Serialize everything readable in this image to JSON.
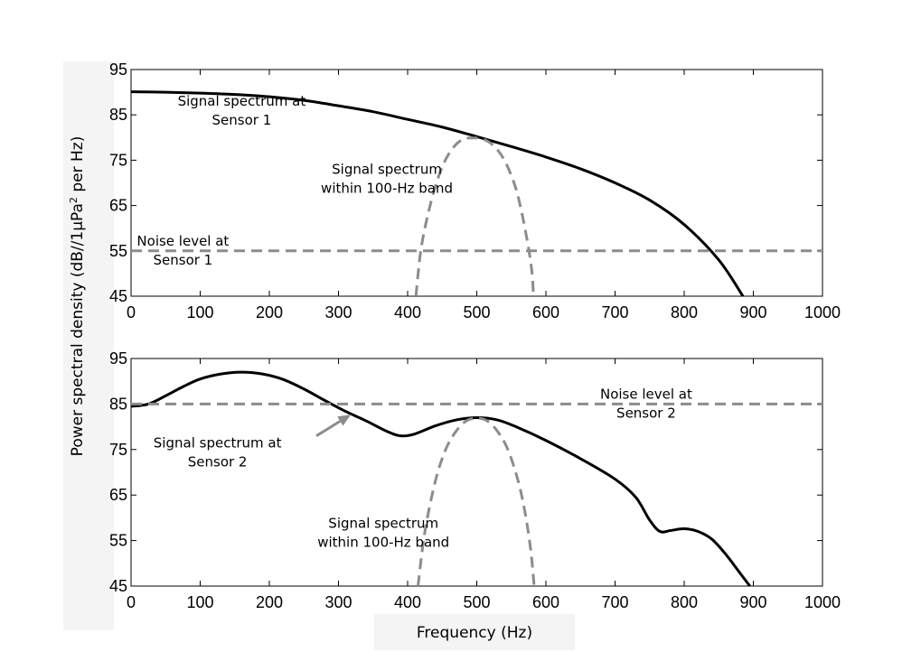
{
  "chart_data": {
    "shared_ylabel_parts": [
      "Power spectral density (dB//1μPa",
      "2",
      " per Hz)"
    ],
    "xlabel": "Frequency (Hz)",
    "panels": [
      {
        "type": "line",
        "xlim": [
          0,
          1000
        ],
        "ylim": [
          45,
          95
        ],
        "xticks": [
          0,
          100,
          200,
          300,
          400,
          500,
          600,
          700,
          800,
          900,
          1000
        ],
        "yticks": [
          45,
          55,
          65,
          75,
          85,
          95
        ],
        "series": [
          {
            "style": "solid",
            "color": "#000000",
            "points": [
              [
                0,
                90.1
              ],
              [
                50,
                90.0
              ],
              [
                100,
                89.8
              ],
              [
                150,
                89.5
              ],
              [
                200,
                89.0
              ],
              [
                250,
                88.2
              ],
              [
                300,
                87.0
              ],
              [
                350,
                85.7
              ],
              [
                400,
                84.0
              ],
              [
                450,
                82.3
              ],
              [
                500,
                80.2
              ],
              [
                550,
                78.0
              ],
              [
                600,
                75.7
              ],
              [
                650,
                73.1
              ],
              [
                700,
                70.0
              ],
              [
                750,
                66.2
              ],
              [
                800,
                60.8
              ],
              [
                850,
                53.0
              ],
              [
                885,
                45.0
              ]
            ]
          },
          {
            "style": "dashed",
            "color": "#8c8c8c",
            "points": [
              [
                412,
                45.0
              ],
              [
                420,
                56.0
              ],
              [
                435,
                66.5
              ],
              [
                450,
                73.5
              ],
              [
                465,
                77.6
              ],
              [
                480,
                79.6
              ],
              [
                495,
                79.9
              ],
              [
                510,
                79.6
              ],
              [
                525,
                78.1
              ],
              [
                540,
                75.0
              ],
              [
                555,
                69.5
              ],
              [
                565,
                63.5
              ],
              [
                575,
                55.5
              ],
              [
                580,
                50.0
              ],
              [
                582,
                45.0
              ]
            ]
          },
          {
            "style": "dashed",
            "color": "#8c8c8c",
            "points": [
              [
                0,
                55
              ],
              [
                1000,
                55
              ]
            ]
          }
        ],
        "annotations": [
          {
            "lines": [
              "Signal spectrum at",
              "Sensor 1"
            ],
            "x": 160,
            "y": 87.0
          },
          {
            "lines": [
              "Signal spectrum",
              "within 100-Hz band"
            ],
            "x": 370,
            "y": 72.0
          },
          {
            "lines": [
              "Noise level at",
              "Sensor 1"
            ],
            "x": 75,
            "y": 56.2
          }
        ]
      },
      {
        "type": "line",
        "xlim": [
          0,
          1000
        ],
        "ylim": [
          45,
          95
        ],
        "xticks": [
          0,
          100,
          200,
          300,
          400,
          500,
          600,
          700,
          800,
          900,
          1000
        ],
        "yticks": [
          45,
          55,
          65,
          75,
          85,
          95
        ],
        "series": [
          {
            "style": "solid",
            "color": "#000000",
            "points": [
              [
                0,
                84.5
              ],
              [
                25,
                85.0
              ],
              [
                50,
                86.8
              ],
              [
                75,
                88.8
              ],
              [
                100,
                90.5
              ],
              [
                130,
                91.6
              ],
              [
                160,
                92.0
              ],
              [
                190,
                91.6
              ],
              [
                220,
                90.4
              ],
              [
                250,
                88.3
              ],
              [
                280,
                85.8
              ],
              [
                310,
                83.4
              ],
              [
                340,
                81.3
              ],
              [
                370,
                79.0
              ],
              [
                390,
                78.0
              ],
              [
                410,
                78.4
              ],
              [
                440,
                80.2
              ],
              [
                470,
                81.5
              ],
              [
                500,
                82.0
              ],
              [
                530,
                81.5
              ],
              [
                560,
                79.8
              ],
              [
                600,
                77.0
              ],
              [
                650,
                73.0
              ],
              [
                700,
                68.5
              ],
              [
                730,
                64.5
              ],
              [
                750,
                59.5
              ],
              [
                765,
                57.0
              ],
              [
                780,
                57.2
              ],
              [
                800,
                57.6
              ],
              [
                820,
                57.0
              ],
              [
                840,
                55.3
              ],
              [
                860,
                52.0
              ],
              [
                880,
                48.0
              ],
              [
                895,
                45.0
              ]
            ]
          },
          {
            "style": "dashed",
            "color": "#8c8c8c",
            "points": [
              [
                415,
                45.0
              ],
              [
                425,
                57.0
              ],
              [
                440,
                68.0
              ],
              [
                455,
                75.0
              ],
              [
                470,
                79.0
              ],
              [
                485,
                81.3
              ],
              [
                500,
                81.9
              ],
              [
                515,
                81.3
              ],
              [
                530,
                79.0
              ],
              [
                545,
                75.0
              ],
              [
                560,
                68.0
              ],
              [
                570,
                61.0
              ],
              [
                578,
                53.0
              ],
              [
                583,
                45.0
              ]
            ]
          },
          {
            "style": "dashed",
            "color": "#8c8c8c",
            "points": [
              [
                0,
                85
              ],
              [
                1000,
                85
              ]
            ]
          }
        ],
        "annotations": [
          {
            "lines": [
              "Noise level at",
              "Sensor 2"
            ],
            "x": 745,
            "y": 86.2
          },
          {
            "lines": [
              "Signal spectrum at",
              "Sensor 2"
            ],
            "x": 125,
            "y": 75.5
          },
          {
            "lines": [
              "Signal spectrum",
              "within 100-Hz band"
            ],
            "x": 365,
            "y": 57.8
          }
        ],
        "arrow": {
          "from": [
            268,
            78.0
          ],
          "to": [
            318,
            82.7
          ],
          "color": "#8c8c8c"
        }
      }
    ]
  }
}
